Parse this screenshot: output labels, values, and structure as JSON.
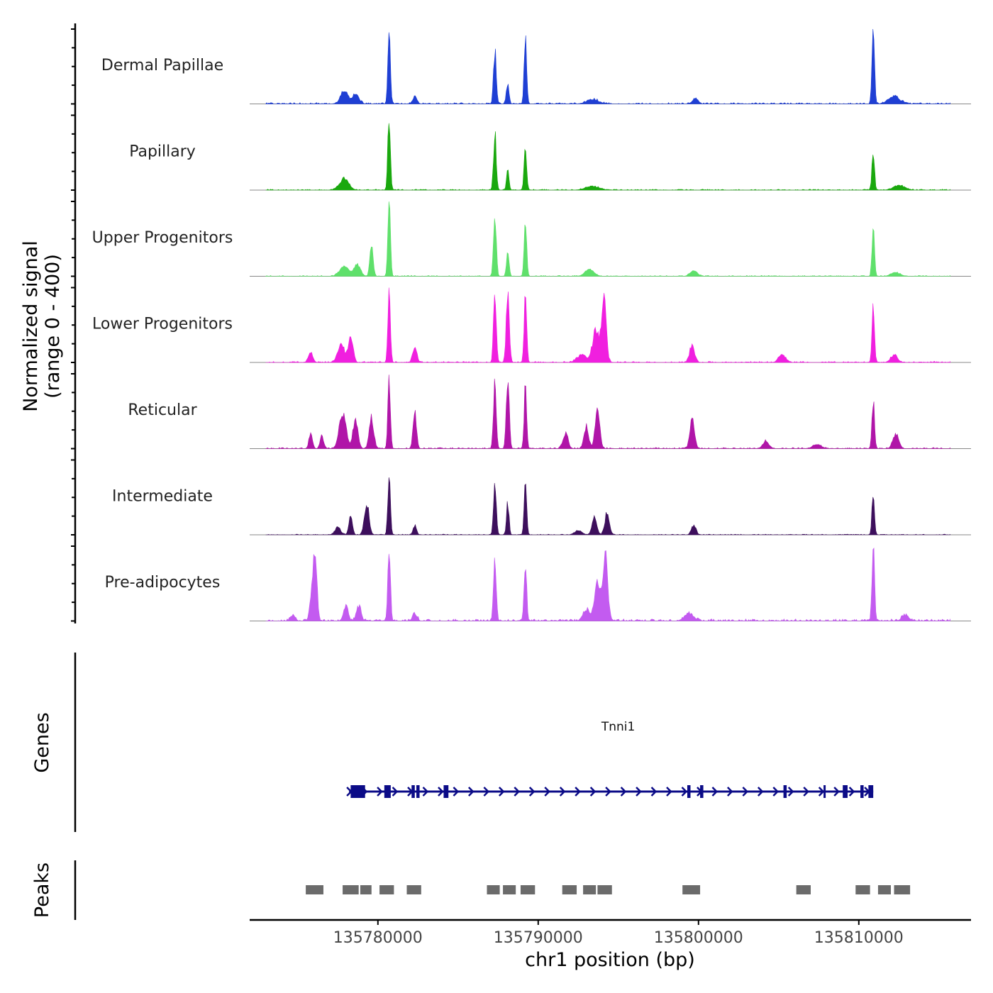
{
  "chart_data": {
    "type": "area",
    "title": "",
    "ylabel": "Normalized signal",
    "ylabel_range": "(range 0 - 400)",
    "xlabel": "chr1 position (bp)",
    "ylim": [
      0,
      400
    ],
    "xlim": [
      135772000,
      135817000
    ],
    "x_ticks": [
      135780000,
      135790000,
      135800000,
      135810000
    ],
    "x_tick_labels": [
      "135780000",
      "135790000",
      "135800000",
      "135810000"
    ],
    "tracks": [
      {
        "name": "Dermal Papillae",
        "color": "#1f3fd4",
        "peaks": [
          [
            135777900,
            75,
            300
          ],
          [
            135778600,
            50,
            300
          ],
          [
            135780700,
            400,
            110
          ],
          [
            135782300,
            40,
            180
          ],
          [
            135787300,
            280,
            120
          ],
          [
            135788100,
            110,
            110
          ],
          [
            135789200,
            350,
            110
          ],
          [
            135793400,
            25,
            500
          ],
          [
            135799800,
            30,
            250
          ],
          [
            135810900,
            380,
            110
          ],
          [
            135812200,
            40,
            500
          ]
        ],
        "noise": 12
      },
      {
        "name": "Papillary",
        "color": "#1aa80e",
        "peaks": [
          [
            135777900,
            60,
            400
          ],
          [
            135780700,
            400,
            110
          ],
          [
            135787300,
            300,
            120
          ],
          [
            135788100,
            100,
            110
          ],
          [
            135789200,
            250,
            110
          ],
          [
            135793400,
            20,
            600
          ],
          [
            135810900,
            210,
            110
          ],
          [
            135812500,
            25,
            500
          ]
        ],
        "noise": 8
      },
      {
        "name": "Upper Progenitors",
        "color": "#5fe06b",
        "peaks": [
          [
            135777900,
            50,
            400
          ],
          [
            135778700,
            60,
            300
          ],
          [
            135779600,
            180,
            140
          ],
          [
            135780700,
            400,
            110
          ],
          [
            135787300,
            340,
            120
          ],
          [
            135788100,
            130,
            110
          ],
          [
            135789200,
            300,
            110
          ],
          [
            135793200,
            35,
            400
          ],
          [
            135799700,
            30,
            300
          ],
          [
            135810900,
            260,
            110
          ],
          [
            135812300,
            20,
            400
          ]
        ],
        "noise": 8
      },
      {
        "name": "Lower Progenitors",
        "color": "#f01fdf",
        "peaks": [
          [
            135775800,
            50,
            200
          ],
          [
            135777700,
            100,
            300
          ],
          [
            135778300,
            140,
            200
          ],
          [
            135780700,
            400,
            110
          ],
          [
            135782300,
            80,
            180
          ],
          [
            135787300,
            380,
            120
          ],
          [
            135788100,
            340,
            140
          ],
          [
            135789200,
            370,
            110
          ],
          [
            135792700,
            40,
            400
          ],
          [
            135793600,
            170,
            300
          ],
          [
            135794100,
            350,
            200
          ],
          [
            135799600,
            90,
            220
          ],
          [
            135805200,
            40,
            300
          ],
          [
            135810900,
            300,
            110
          ],
          [
            135812200,
            40,
            300
          ]
        ],
        "noise": 10
      },
      {
        "name": "Reticular",
        "color": "#b015a8",
        "peaks": [
          [
            135775800,
            80,
            150
          ],
          [
            135776500,
            70,
            150
          ],
          [
            135777800,
            190,
            300
          ],
          [
            135778600,
            150,
            220
          ],
          [
            135779600,
            160,
            200
          ],
          [
            135780700,
            390,
            110
          ],
          [
            135782300,
            200,
            150
          ],
          [
            135787300,
            380,
            120
          ],
          [
            135788100,
            370,
            130
          ],
          [
            135789200,
            340,
            110
          ],
          [
            135791700,
            80,
            220
          ],
          [
            135793000,
            120,
            200
          ],
          [
            135793700,
            230,
            200
          ],
          [
            135799600,
            150,
            200
          ],
          [
            135804200,
            40,
            250
          ],
          [
            135807400,
            20,
            400
          ],
          [
            135810900,
            260,
            110
          ],
          [
            135812300,
            80,
            250
          ]
        ],
        "noise": 10
      },
      {
        "name": "Intermediate",
        "color": "#3d0f5c",
        "peaks": [
          [
            135777500,
            40,
            250
          ],
          [
            135778300,
            110,
            150
          ],
          [
            135779300,
            170,
            200
          ],
          [
            135780700,
            320,
            110
          ],
          [
            135782300,
            50,
            150
          ],
          [
            135787300,
            270,
            120
          ],
          [
            135788100,
            170,
            110
          ],
          [
            135789200,
            260,
            110
          ],
          [
            135792500,
            25,
            300
          ],
          [
            135793500,
            100,
            200
          ],
          [
            135794300,
            120,
            200
          ],
          [
            135799700,
            50,
            200
          ],
          [
            135810900,
            220,
            110
          ]
        ],
        "noise": 6
      },
      {
        "name": "Pre-adipocytes",
        "color": "#c35bf0",
        "peaks": [
          [
            135774700,
            30,
            200
          ],
          [
            135775900,
            180,
            180
          ],
          [
            135776100,
            340,
            150
          ],
          [
            135778000,
            80,
            200
          ],
          [
            135778800,
            80,
            200
          ],
          [
            135780700,
            400,
            110
          ],
          [
            135782300,
            40,
            200
          ],
          [
            135787300,
            320,
            120
          ],
          [
            135789200,
            330,
            110
          ],
          [
            135793000,
            60,
            300
          ],
          [
            135793700,
            220,
            250
          ],
          [
            135794200,
            360,
            200
          ],
          [
            135799400,
            40,
            400
          ],
          [
            135810900,
            390,
            110
          ],
          [
            135812900,
            30,
            300
          ]
        ],
        "noise": 18
      }
    ],
    "genes_track": {
      "label": "Genes",
      "gene_name": "Tnni1",
      "color": "#0b0b87",
      "start": 135778200,
      "end": 135810900,
      "strand": "+",
      "exons": [
        [
          135778300,
          135779200
        ],
        [
          135780400,
          135780800
        ],
        [
          135782100,
          135782300
        ],
        [
          135782400,
          135782600
        ],
        [
          135784100,
          135784400
        ],
        [
          135799300,
          135799500
        ],
        [
          135800100,
          135800300
        ],
        [
          135805300,
          135805500
        ],
        [
          135807800,
          135807900
        ],
        [
          135809000,
          135809300
        ],
        [
          135810100,
          135810300
        ],
        [
          135810600,
          135810900
        ]
      ]
    },
    "peaks_track": {
      "label": "Peaks",
      "color": "#6b6b6b",
      "regions": [
        [
          135775500,
          135776600
        ],
        [
          135777800,
          135778800
        ],
        [
          135778900,
          135779600
        ],
        [
          135780100,
          135781000
        ],
        [
          135781800,
          135782700
        ],
        [
          135786800,
          135787600
        ],
        [
          135787800,
          135788600
        ],
        [
          135788900,
          135789800
        ],
        [
          135791500,
          135792400
        ],
        [
          135792800,
          135793600
        ],
        [
          135793700,
          135794600
        ],
        [
          135799000,
          135800100
        ],
        [
          135806100,
          135807000
        ],
        [
          135809800,
          135810700
        ],
        [
          135811200,
          135812000
        ],
        [
          135812200,
          135813200
        ]
      ]
    }
  }
}
